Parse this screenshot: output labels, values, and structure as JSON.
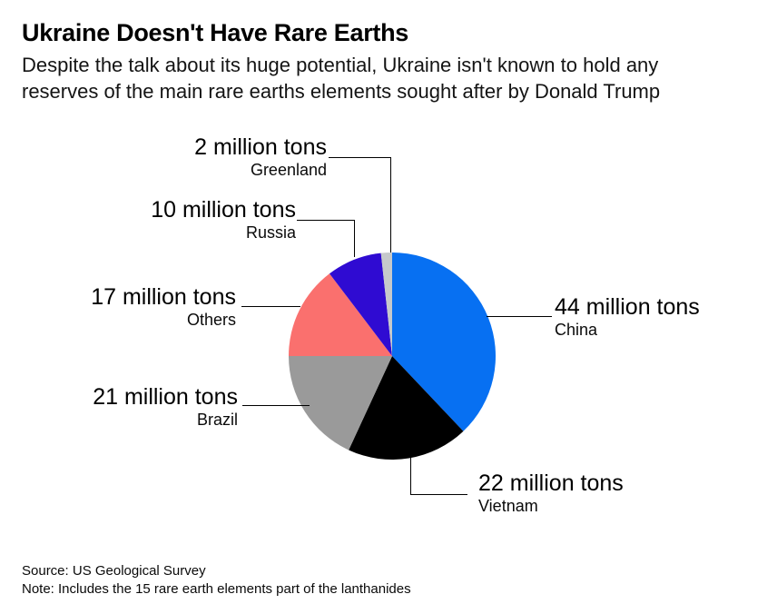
{
  "header": {
    "title": "Ukraine Doesn't Have Rare Earths",
    "subtitle": "Despite the talk about its huge potential, Ukraine isn't known to hold any\nreserves of the main rare earths elements sought after by Donald Trump"
  },
  "chart_data": {
    "type": "pie",
    "unit": "million tons",
    "total": 116,
    "start_angle_deg": 0,
    "direction": "clockwise",
    "legend": "none",
    "labels_as_callouts": true,
    "slices": [
      {
        "label": "China",
        "value": 44,
        "value_label": "44 million tons",
        "color": "#0770f2"
      },
      {
        "label": "Vietnam",
        "value": 22,
        "value_label": "22 million tons",
        "color": "#000000"
      },
      {
        "label": "Brazil",
        "value": 21,
        "value_label": "21 million tons",
        "color": "#9a9a9a"
      },
      {
        "label": "Others",
        "value": 17,
        "value_label": "17 million tons",
        "color": "#fa706e"
      },
      {
        "label": "Russia",
        "value": 10,
        "value_label": "10 million tons",
        "color": "#2f0bd2"
      },
      {
        "label": "Greenland",
        "value": 2,
        "value_label": "2 million tons",
        "color": "#c6c9cb"
      }
    ]
  },
  "footer": {
    "source": "Source: US Geological Survey",
    "note": "Note: Includes the 15 rare earth elements part of the lanthanides"
  }
}
